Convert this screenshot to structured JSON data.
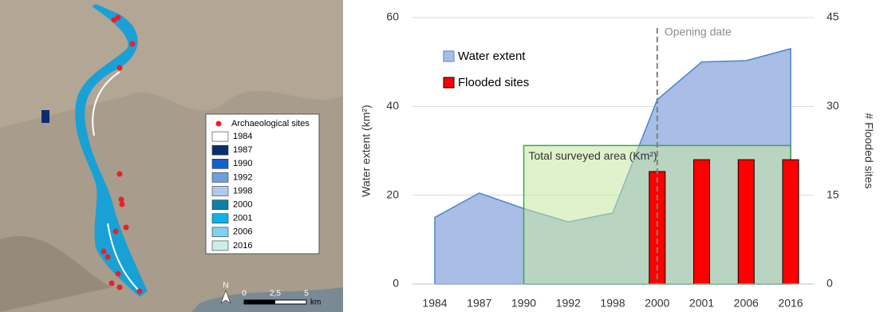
{
  "map": {
    "legend": [
      {
        "label": "Archaeological sites",
        "color": "#e8202a"
      },
      {
        "label": "1984",
        "color": "#ffffff"
      },
      {
        "label": "1987",
        "color": "#0a2d6e"
      },
      {
        "label": "1990",
        "color": "#1560d0"
      },
      {
        "label": "1992",
        "color": "#6ea0e0"
      },
      {
        "label": "1998",
        "color": "#b0c8ee"
      },
      {
        "label": "2000",
        "color": "#1080a8"
      },
      {
        "label": "2001",
        "color": "#10b0e8"
      },
      {
        "label": "2006",
        "color": "#80d0f0"
      },
      {
        "label": "2016",
        "color": "#c8f0e8"
      }
    ],
    "north": "N",
    "scale": [
      "0",
      "2,5",
      "5",
      "km"
    ]
  },
  "chart_data": {
    "type": "area",
    "categories": [
      "1984",
      "1987",
      "1990",
      "1992",
      "1998",
      "2000",
      "2001",
      "2006",
      "2016"
    ],
    "series": [
      {
        "name": "Water extent",
        "color": "#a9bde6",
        "stroke": "#4a86c8",
        "values": [
          15,
          20.5,
          17,
          14,
          16,
          41.5,
          50,
          50.3,
          53
        ]
      },
      {
        "name": "Total surveyed area (Km²)",
        "type": "area",
        "color": "#c6e8a0",
        "stroke": "#3aa655",
        "values": [
          null,
          null,
          31.2,
          31.2,
          31.2,
          31.2,
          31.2,
          31.2,
          31.2
        ]
      },
      {
        "name": "Flooded sites",
        "type": "bar",
        "axis": "y2",
        "color": "#ff0000",
        "values": [
          null,
          null,
          null,
          null,
          null,
          19,
          21,
          21,
          21
        ]
      }
    ],
    "ylabel": "Water extent (km²)",
    "y2label": "# Flooded sites",
    "ylim": [
      0,
      60
    ],
    "yticks": [
      0,
      20,
      40,
      60
    ],
    "y2lim": [
      0,
      45
    ],
    "y2ticks": [
      0,
      15,
      30,
      45
    ],
    "grid": true,
    "annotation": {
      "text": "Opening date",
      "category": "2000"
    }
  }
}
